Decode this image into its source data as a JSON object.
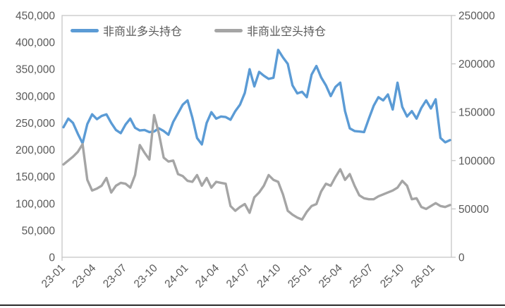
{
  "colors": {
    "long_series": "#5B9BD5",
    "short_series": "#A5A5A5",
    "axis_text": "#595959",
    "axis_line": "#C6C6C6",
    "page_rule": "#2B2B2B",
    "background": "#FFFFFF"
  },
  "chart_data": {
    "type": "line",
    "title": "",
    "grid": "off",
    "legend_position": "top-inside",
    "x_axis": {
      "tick_labels": [
        "23-01",
        "23-04",
        "23-07",
        "23-10",
        "24-01",
        "24-04",
        "24-07",
        "24-10",
        "25-01",
        "25-04",
        "25-07",
        "25-10",
        "26-01"
      ],
      "label_rotation_deg": 45
    },
    "left_axis": {
      "min": 0,
      "max": 450000,
      "step": 50000,
      "tick_labels": [
        "450,000",
        "400,000",
        "350,000",
        "300,000",
        "250,000",
        "200,000",
        "150,000",
        "100,000",
        "50,000",
        "0"
      ]
    },
    "right_axis": {
      "min": 0,
      "max": 250000,
      "step": 50000,
      "tick_labels": [
        "250000",
        "200000",
        "150000",
        "100000",
        "50000",
        "0"
      ]
    },
    "series": [
      {
        "name": "非商业多头持仓",
        "axis": "left",
        "color": "#5B9BD5",
        "values": [
          242000,
          258000,
          250000,
          230000,
          212000,
          248000,
          266000,
          257000,
          263000,
          266000,
          250000,
          237000,
          231000,
          247000,
          258000,
          241000,
          236000,
          237000,
          233000,
          234000,
          240000,
          235000,
          228000,
          252000,
          268000,
          284000,
          292000,
          260000,
          222000,
          210000,
          250000,
          270000,
          258000,
          262000,
          261000,
          256000,
          272000,
          284000,
          306000,
          350000,
          318000,
          345000,
          338000,
          332000,
          334000,
          386000,
          372000,
          360000,
          320000,
          305000,
          308000,
          298000,
          340000,
          356000,
          335000,
          320000,
          300000,
          317000,
          325000,
          272000,
          240000,
          235000,
          234000,
          233000,
          258000,
          282000,
          298000,
          292000,
          303000,
          275000,
          325000,
          280000,
          262000,
          272000,
          258000,
          278000,
          292000,
          277000,
          294000,
          222000,
          214000,
          218000
        ]
      },
      {
        "name": "非商业空头持仓",
        "axis": "right",
        "color": "#A5A5A5",
        "values": [
          96000,
          100000,
          104000,
          109000,
          117000,
          80000,
          69000,
          71000,
          74000,
          82000,
          67000,
          74000,
          77000,
          76000,
          72000,
          85000,
          116000,
          108000,
          101000,
          147000,
          128000,
          103000,
          99000,
          100000,
          86000,
          84000,
          79000,
          78000,
          85000,
          74000,
          82000,
          72000,
          78000,
          77000,
          76000,
          53000,
          48000,
          52000,
          55000,
          46000,
          62000,
          67000,
          74000,
          85000,
          80000,
          78000,
          65000,
          48000,
          44000,
          41000,
          39000,
          47000,
          53000,
          55000,
          68000,
          76000,
          74000,
          83000,
          91000,
          80000,
          86000,
          74000,
          64000,
          61000,
          60000,
          60000,
          63000,
          65000,
          67000,
          69000,
          72000,
          79000,
          74000,
          60000,
          61000,
          52000,
          50000,
          53000,
          56000,
          53000,
          52000,
          54000
        ]
      }
    ]
  }
}
